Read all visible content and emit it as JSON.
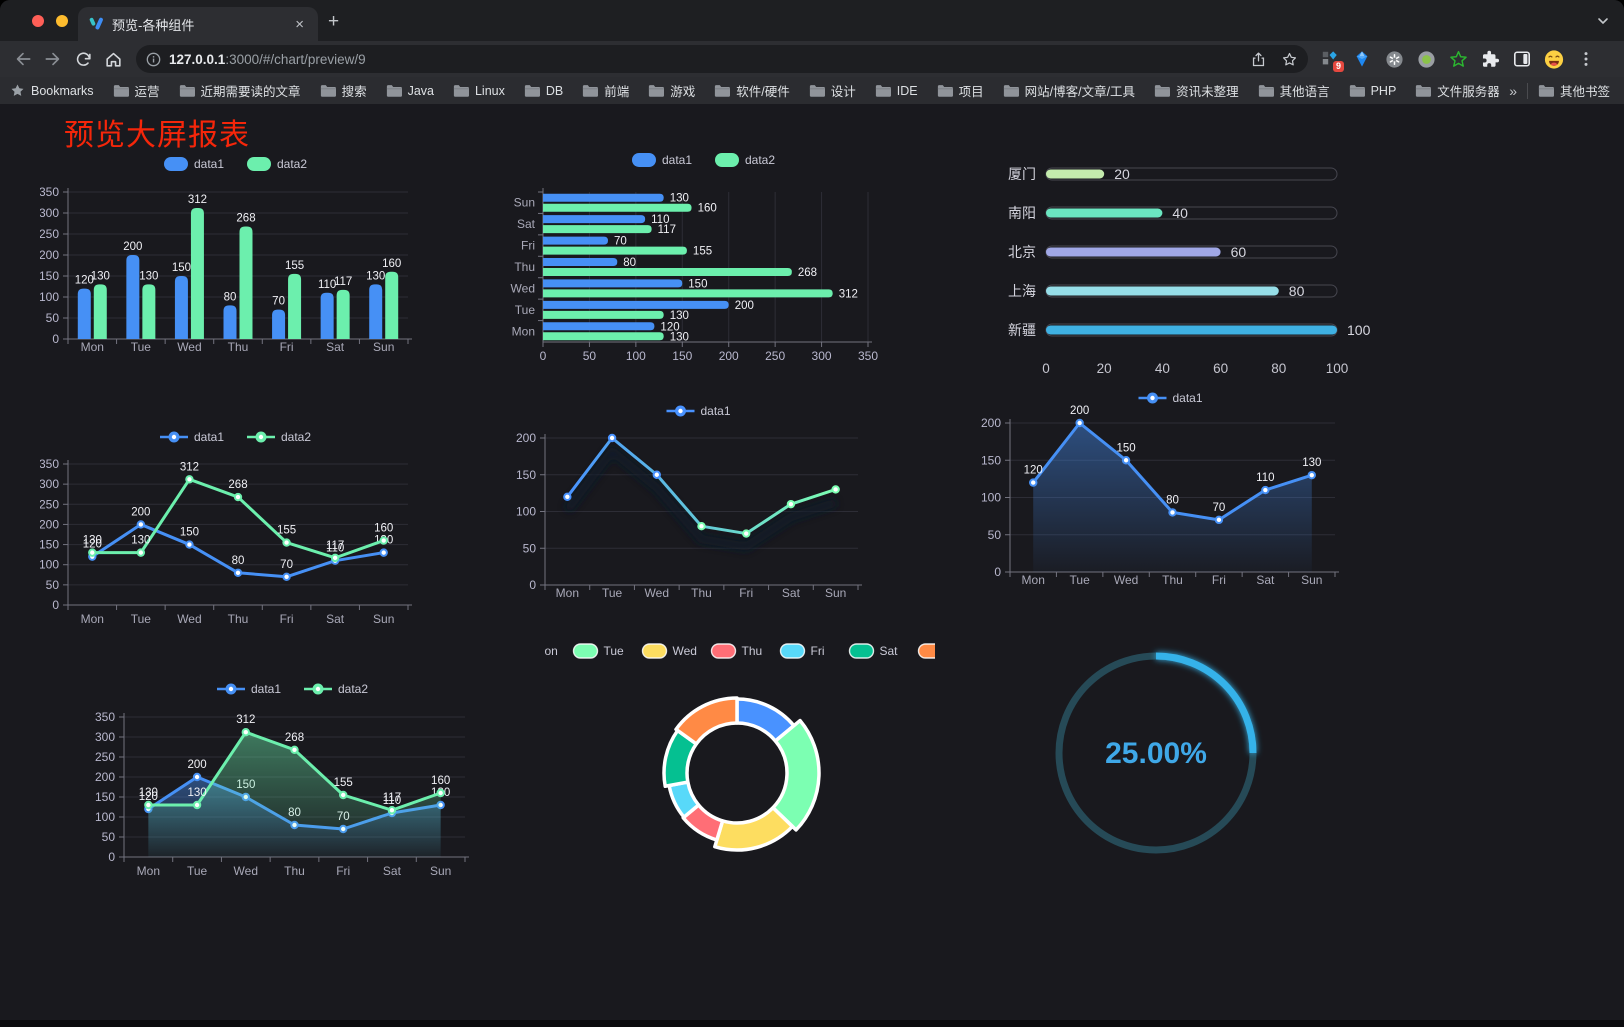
{
  "browser": {
    "window_controls": [
      "close",
      "minimize",
      "zoom"
    ],
    "tab": {
      "title": "预览-各种组件",
      "close_glyph": "×",
      "new_tab_glyph": "+"
    },
    "address": {
      "host": "127.0.0.1",
      "rest": ":3000/#/chart/preview/9"
    },
    "extensions_badge": "9",
    "bookmarks": {
      "root_label": "Bookmarks",
      "folders": [
        "运营",
        "近期需要读的文章",
        "搜索",
        "Java",
        "Linux",
        "DB",
        "前端",
        "游戏",
        "软件/硬件",
        "设计",
        "IDE",
        "项目",
        "网站/博客/文章/工具",
        "资讯未整理",
        "其他语言",
        "PHP",
        "文件服务器"
      ],
      "overflow_chevron": "»",
      "other_bookmarks_label": "其他书签"
    }
  },
  "page": {
    "title": "预览大屏报表",
    "title_color": "#f5260a",
    "background": "#19191e"
  },
  "palette": {
    "series_blue": "#4690f5",
    "series_green": "#6cefad",
    "axis_text": "#b9b8ce",
    "category_text": "#a9a9b8",
    "value_label": "#f0f0f5",
    "grid_line": "#2d2d36",
    "axis_line": "#73737f",
    "legend_text": "#c9c9d6"
  },
  "chart_data": [
    {
      "id": "grouped-bar",
      "type": "bar",
      "categories": [
        "Mon",
        "Tue",
        "Wed",
        "Thu",
        "Fri",
        "Sat",
        "Sun"
      ],
      "series": [
        {
          "name": "data1",
          "color": "#4690f5",
          "values": [
            120,
            200,
            150,
            80,
            70,
            110,
            130
          ]
        },
        {
          "name": "data2",
          "color": "#6cefad",
          "values": [
            130,
            130,
            312,
            268,
            155,
            117,
            160
          ]
        }
      ],
      "ylim": [
        0,
        350
      ],
      "yticks": [
        0,
        50,
        100,
        150,
        200,
        250,
        300,
        350
      ],
      "legend_position": "top",
      "grid": true
    },
    {
      "id": "horizontal-bar",
      "type": "bar-horizontal",
      "categories": [
        "Mon",
        "Tue",
        "Wed",
        "Thu",
        "Fri",
        "Sat",
        "Sun"
      ],
      "series": [
        {
          "name": "data1",
          "color": "#4690f5",
          "values": [
            120,
            200,
            150,
            80,
            70,
            110,
            130
          ]
        },
        {
          "name": "data2",
          "color": "#6cefad",
          "values": [
            130,
            130,
            312,
            268,
            155,
            117,
            160
          ]
        }
      ],
      "xlim": [
        0,
        350
      ],
      "xticks": [
        0,
        50,
        100,
        150,
        200,
        250,
        300,
        350
      ],
      "legend_position": "top",
      "grid": true
    },
    {
      "id": "capsule-progress",
      "type": "capsule",
      "rows": [
        {
          "label": "厦门",
          "value": 20,
          "color": "#c4ebad"
        },
        {
          "label": "南阳",
          "value": 40,
          "color": "#6be6c1"
        },
        {
          "label": "北京",
          "value": 60,
          "color": "#a0a7e6"
        },
        {
          "label": "上海",
          "value": 80,
          "color": "#96dee8"
        },
        {
          "label": "新疆",
          "value": 100,
          "color": "#3fb1e3"
        }
      ],
      "xlim": [
        0,
        100
      ],
      "xticks": [
        0,
        20,
        40,
        60,
        80,
        100
      ]
    },
    {
      "id": "line-two-series",
      "type": "line",
      "categories": [
        "Mon",
        "Tue",
        "Wed",
        "Thu",
        "Fri",
        "Sat",
        "Sun"
      ],
      "series": [
        {
          "name": "data1",
          "color": "#4690f5",
          "values": [
            120,
            200,
            150,
            80,
            70,
            110,
            130
          ]
        },
        {
          "name": "data2",
          "color": "#6cefad",
          "values": [
            130,
            130,
            312,
            268,
            155,
            117,
            160
          ]
        }
      ],
      "ylim": [
        0,
        350
      ],
      "yticks": [
        0,
        50,
        100,
        150,
        200,
        250,
        300,
        350
      ],
      "point_labels": true,
      "legend_position": "top"
    },
    {
      "id": "line-gradient",
      "type": "line",
      "categories": [
        "Mon",
        "Tue",
        "Wed",
        "Thu",
        "Fri",
        "Sat",
        "Sun"
      ],
      "series": [
        {
          "name": "data1",
          "color_start": "#4992ff",
          "color_end": "#7cffb2",
          "values": [
            120,
            200,
            150,
            80,
            70,
            110,
            130
          ]
        }
      ],
      "ylim": [
        0,
        200
      ],
      "yticks": [
        0,
        50,
        100,
        150,
        200
      ],
      "point_labels": false,
      "legend_position": "top"
    },
    {
      "id": "line-area",
      "type": "line",
      "categories": [
        "Mon",
        "Tue",
        "Wed",
        "Thu",
        "Fri",
        "Sat",
        "Sun"
      ],
      "series": [
        {
          "name": "data1",
          "color": "#4690f5",
          "area": true,
          "values": [
            120,
            200,
            150,
            80,
            70,
            110,
            130
          ]
        }
      ],
      "ylim": [
        0,
        200
      ],
      "yticks": [
        0,
        50,
        100,
        150,
        200
      ],
      "point_labels": true,
      "legend_position": "top"
    },
    {
      "id": "line-area-two-series",
      "type": "line",
      "categories": [
        "Mon",
        "Tue",
        "Wed",
        "Thu",
        "Fri",
        "Sat",
        "Sun"
      ],
      "series": [
        {
          "name": "data1",
          "color": "#4690f5",
          "area": true,
          "values": [
            120,
            200,
            150,
            80,
            70,
            110,
            130
          ]
        },
        {
          "name": "data2",
          "color": "#6cefad",
          "area": true,
          "values": [
            130,
            130,
            312,
            268,
            155,
            117,
            160
          ]
        }
      ],
      "ylim": [
        0,
        350
      ],
      "yticks": [
        0,
        50,
        100,
        150,
        200,
        250,
        300,
        350
      ],
      "point_labels": true,
      "legend_position": "top"
    },
    {
      "id": "donut-rose",
      "type": "pie",
      "categories": [
        "Mon",
        "Tue",
        "Wed",
        "Thu",
        "Fri",
        "Sat",
        "Sun"
      ],
      "values": [
        120,
        200,
        150,
        80,
        70,
        110,
        130
      ],
      "colors": [
        "#4992ff",
        "#7cffb2",
        "#fddd60",
        "#ff6e76",
        "#58d9f9",
        "#05c091",
        "#ff8a45"
      ],
      "legend_position": "top",
      "donut": true,
      "rose": true
    },
    {
      "id": "progress-ring",
      "type": "gauge",
      "value": 25,
      "label": "25.00%",
      "color": "#35b2e9",
      "track_color": "#264a57",
      "text_color": "#3fa8e8"
    }
  ]
}
